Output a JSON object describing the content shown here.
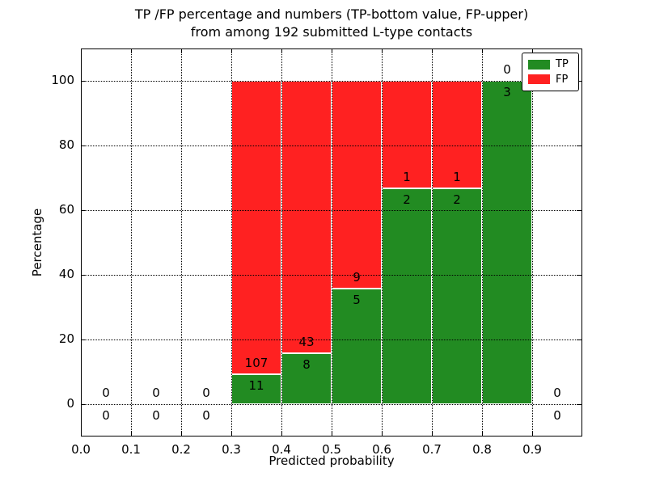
{
  "chart_data": {
    "type": "bar",
    "stacked": true,
    "orientation": "vertical",
    "title_line1": "TP /FP percentage and numbers (TP-bottom value, FP-upper)",
    "title_line2": "from among 192 submitted L-type contacts",
    "xlabel": "Predicted probability",
    "ylabel": "Percentage",
    "xlim": [
      0.0,
      1.0
    ],
    "ylim": [
      -10,
      110
    ],
    "grid": "dotted, both axes, drawn above bars",
    "x_ticks": [
      {
        "value": 0.0,
        "label": "0.0"
      },
      {
        "value": 0.1,
        "label": "0.1"
      },
      {
        "value": 0.2,
        "label": "0.2"
      },
      {
        "value": 0.3,
        "label": "0.3"
      },
      {
        "value": 0.4,
        "label": "0.4"
      },
      {
        "value": 0.5,
        "label": "0.5"
      },
      {
        "value": 0.6,
        "label": "0.6"
      },
      {
        "value": 0.7,
        "label": "0.7"
      },
      {
        "value": 0.8,
        "label": "0.8"
      },
      {
        "value": 0.9,
        "label": "0.9"
      }
    ],
    "y_ticks": [
      {
        "value": 0,
        "label": "0"
      },
      {
        "value": 20,
        "label": "20"
      },
      {
        "value": 40,
        "label": "40"
      },
      {
        "value": 60,
        "label": "60"
      },
      {
        "value": 80,
        "label": "80"
      },
      {
        "value": 100,
        "label": "100"
      }
    ],
    "series_colors": {
      "tp": "#228b22",
      "fp": "#ff2121"
    },
    "legend": {
      "position": "upper right",
      "entries": [
        {
          "label": "TP",
          "color": "#228b22"
        },
        {
          "label": "FP",
          "color": "#ff2121"
        }
      ]
    },
    "bins": [
      {
        "x_start": 0.0,
        "x_end": 0.1,
        "tp_count": 0,
        "fp_count": 0
      },
      {
        "x_start": 0.1,
        "x_end": 0.2,
        "tp_count": 0,
        "fp_count": 0
      },
      {
        "x_start": 0.2,
        "x_end": 0.3,
        "tp_count": 0,
        "fp_count": 0
      },
      {
        "x_start": 0.3,
        "x_end": 0.4,
        "tp_count": 11,
        "fp_count": 107
      },
      {
        "x_start": 0.4,
        "x_end": 0.5,
        "tp_count": 8,
        "fp_count": 43
      },
      {
        "x_start": 0.5,
        "x_end": 0.6,
        "tp_count": 5,
        "fp_count": 9
      },
      {
        "x_start": 0.6,
        "x_end": 0.7,
        "tp_count": 2,
        "fp_count": 1
      },
      {
        "x_start": 0.7,
        "x_end": 0.8,
        "tp_count": 2,
        "fp_count": 1
      },
      {
        "x_start": 0.8,
        "x_end": 0.9,
        "tp_count": 3,
        "fp_count": 0
      },
      {
        "x_start": 0.9,
        "x_end": 1.0,
        "tp_count": 0,
        "fp_count": 0
      }
    ]
  }
}
